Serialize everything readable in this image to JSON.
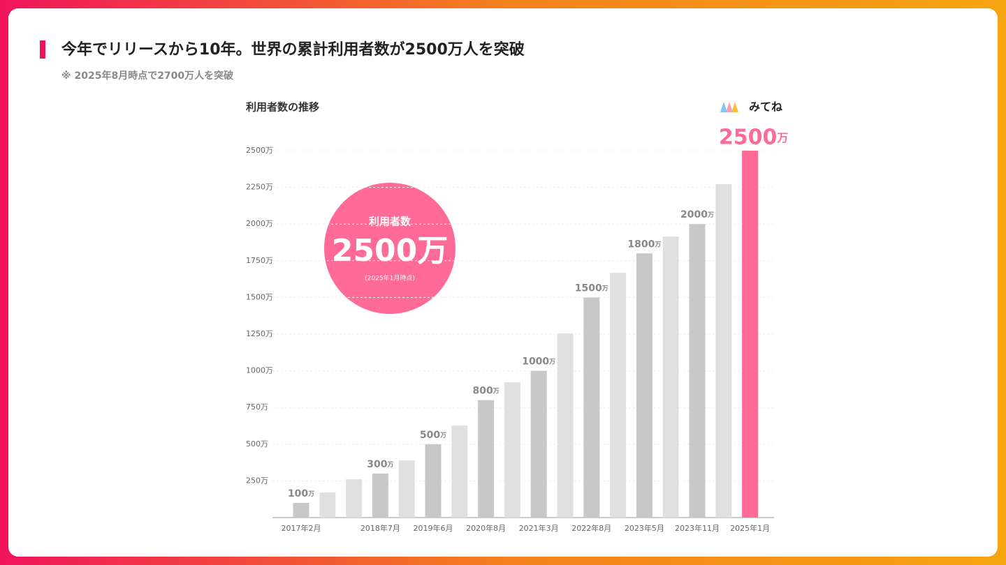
{
  "header": {
    "title": "今年でリリースから10年。世界の累計利用者数が2500万人を突破",
    "subtitle": "※ 2025年8月時点で2700万人を突破"
  },
  "chart_data": {
    "type": "bar",
    "title": "利用者数の推移",
    "brand": "みてね",
    "categories": [
      "2017年2月",
      null,
      null,
      "2018年7月",
      null,
      "2019年6月",
      null,
      "2020年8月",
      null,
      "2021年3月",
      null,
      "2022年8月",
      null,
      "2023年5月",
      null,
      "2023年11月",
      null,
      "2025年1月"
    ],
    "values": [
      100,
      171,
      261,
      300,
      390,
      500,
      627,
      800,
      922,
      1000,
      1255,
      1500,
      1668,
      1800,
      1915,
      2000,
      2272,
      2500
    ],
    "value_labels": [
      "100万",
      null,
      null,
      "300万",
      null,
      "500万",
      null,
      "800万",
      null,
      "1000万",
      null,
      "1500万",
      null,
      "1800万",
      null,
      "2000万",
      null,
      "2500万"
    ],
    "colors": [
      "#c8c8c8",
      "#e0e0e0",
      "#e0e0e0",
      "#c8c8c8",
      "#e0e0e0",
      "#c8c8c8",
      "#e0e0e0",
      "#c8c8c8",
      "#e0e0e0",
      "#c8c8c8",
      "#e0e0e0",
      "#c8c8c8",
      "#e0e0e0",
      "#c8c8c8",
      "#e0e0e0",
      "#c8c8c8",
      "#e0e0e0",
      "#ff6b96"
    ],
    "ylim": [
      0,
      2500
    ],
    "yticks": [
      {
        "value": 250,
        "label": "250万"
      },
      {
        "value": 500,
        "label": "500万"
      },
      {
        "value": 750,
        "label": "750万"
      },
      {
        "value": 1000,
        "label": "1000万"
      },
      {
        "value": 1250,
        "label": "1250万"
      },
      {
        "value": 1500,
        "label": "1500万"
      },
      {
        "value": 1750,
        "label": "1750万"
      },
      {
        "value": 2000,
        "label": "2000万"
      },
      {
        "value": 2250,
        "label": "2250万"
      },
      {
        "value": 2500,
        "label": "2500万"
      }
    ],
    "grid": true,
    "badge": {
      "label": "利用者数",
      "value": "2500万",
      "note": "(2025年1月時点)"
    }
  }
}
